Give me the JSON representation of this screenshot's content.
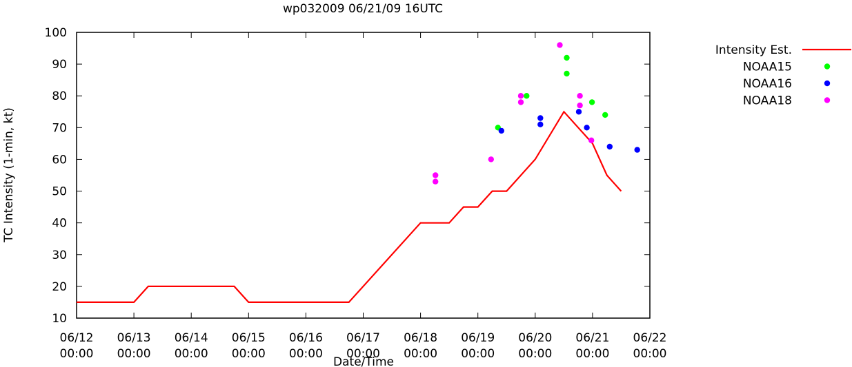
{
  "chart_data": {
    "type": "line",
    "title": "wp032009 06/21/09 16UTC",
    "xlabel": "Date/Time",
    "ylabel": "TC Intensity (1-min, kt)",
    "ylim": [
      10,
      100
    ],
    "xlim_days": [
      12,
      22
    ],
    "y_ticks": [
      10,
      20,
      30,
      40,
      50,
      60,
      70,
      80,
      90,
      100
    ],
    "x_ticks": [
      {
        "day": 12,
        "date": "06/12",
        "time": "00:00"
      },
      {
        "day": 13,
        "date": "06/13",
        "time": "00:00"
      },
      {
        "day": 14,
        "date": "06/14",
        "time": "00:00"
      },
      {
        "day": 15,
        "date": "06/15",
        "time": "00:00"
      },
      {
        "day": 16,
        "date": "06/16",
        "time": "00:00"
      },
      {
        "day": 17,
        "date": "06/17",
        "time": "00:00"
      },
      {
        "day": 18,
        "date": "06/18",
        "time": "00:00"
      },
      {
        "day": 19,
        "date": "06/19",
        "time": "00:00"
      },
      {
        "day": 20,
        "date": "06/20",
        "time": "00:00"
      },
      {
        "day": 21,
        "date": "06/21",
        "time": "00:00"
      },
      {
        "day": 22,
        "date": "06/22",
        "time": "00:00"
      }
    ],
    "grid": false,
    "legend_position": "outside-right",
    "series": [
      {
        "name": "Intensity Est.",
        "kind": "line",
        "color": "#ff0000",
        "points": [
          [
            12.0,
            15
          ],
          [
            13.0,
            15
          ],
          [
            13.25,
            20
          ],
          [
            14.75,
            20
          ],
          [
            15.0,
            15
          ],
          [
            16.75,
            15
          ],
          [
            18.0,
            40
          ],
          [
            18.5,
            40
          ],
          [
            18.75,
            45
          ],
          [
            19.0,
            45
          ],
          [
            19.25,
            50
          ],
          [
            19.5,
            50
          ],
          [
            20.0,
            60
          ],
          [
            20.5,
            75
          ],
          [
            21.0,
            65
          ],
          [
            21.25,
            55
          ],
          [
            21.5,
            50
          ]
        ]
      },
      {
        "name": "NOAA15",
        "kind": "scatter",
        "color": "#00ff00",
        "points": [
          [
            19.35,
            70
          ],
          [
            19.85,
            80
          ],
          [
            20.55,
            92
          ],
          [
            20.55,
            87
          ],
          [
            20.99,
            78
          ],
          [
            21.22,
            74
          ]
        ]
      },
      {
        "name": "NOAA16",
        "kind": "scatter",
        "color": "#0000ff",
        "points": [
          [
            19.41,
            69
          ],
          [
            20.09,
            73
          ],
          [
            20.09,
            71
          ],
          [
            20.76,
            75
          ],
          [
            20.9,
            70
          ],
          [
            21.3,
            64
          ],
          [
            21.78,
            63
          ]
        ]
      },
      {
        "name": "NOAA18",
        "kind": "scatter",
        "color": "#ff00ff",
        "points": [
          [
            18.26,
            55
          ],
          [
            18.26,
            53
          ],
          [
            19.23,
            60
          ],
          [
            19.75,
            80
          ],
          [
            19.75,
            78
          ],
          [
            20.43,
            96
          ],
          [
            20.78,
            80
          ],
          [
            20.78,
            77
          ],
          [
            20.98,
            66
          ]
        ]
      }
    ]
  }
}
